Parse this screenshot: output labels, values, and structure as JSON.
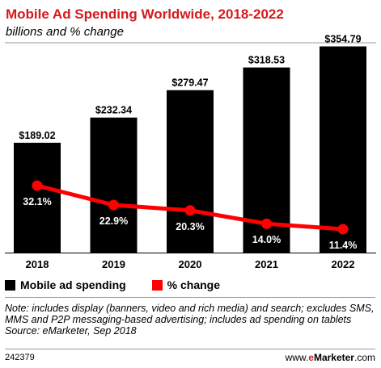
{
  "header": {
    "title": "Mobile Ad Spending Worldwide, 2018-2022",
    "subtitle": "billions and % change"
  },
  "colors": {
    "accent": "#d7191c",
    "bar": "#000000",
    "line": "#ff0000"
  },
  "chart_data": {
    "type": "bar",
    "categories": [
      "2018",
      "2019",
      "2020",
      "2021",
      "2022"
    ],
    "series": [
      {
        "name": "Mobile ad spending",
        "type": "bar",
        "values": [
          189.02,
          232.34,
          279.47,
          318.53,
          354.79
        ],
        "labels": [
          "$189.02",
          "$232.34",
          "$279.47",
          "$318.53",
          "$354.79"
        ]
      },
      {
        "name": "% change",
        "type": "line",
        "values": [
          32.1,
          22.9,
          20.3,
          14.0,
          11.4
        ],
        "labels": [
          "32.1%",
          "22.9%",
          "20.3%",
          "14.0%",
          "11.4%"
        ]
      }
    ],
    "legend": "bottom-left",
    "grid": false
  },
  "legend": {
    "bar_label": "Mobile ad spending",
    "line_label": "% change"
  },
  "footer": {
    "note": "Note: includes display (banners, video and rich media) and search; excludes SMS, MMS and P2P messaging-based advertising; includes ad spending on tablets",
    "source": "Source: eMarketer, Sep 2018",
    "chart_id": "242379",
    "brand_prefix": "www.",
    "brand_e": "e",
    "brand_name": "Marketer",
    "brand_suffix": ".com"
  }
}
